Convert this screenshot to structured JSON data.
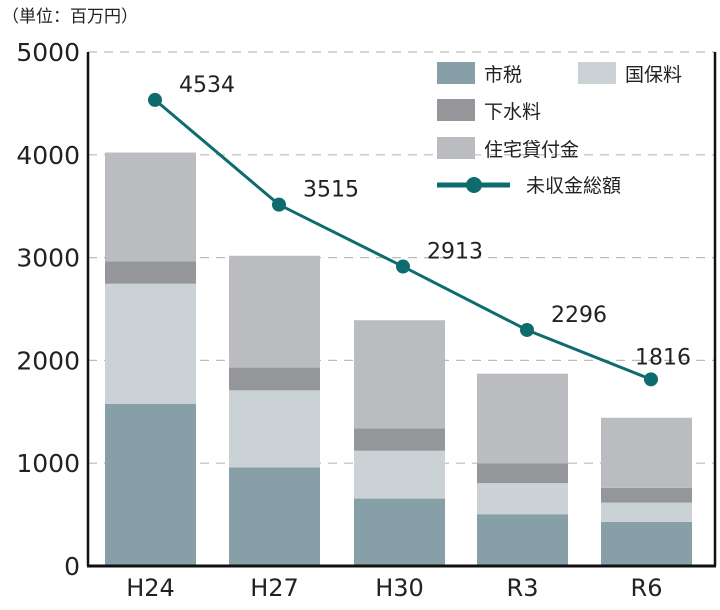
{
  "chart_data": {
    "type": "bar",
    "stacked": true,
    "unit_label": "（単位：百万円）",
    "categories": [
      "H24",
      "H27",
      "H30",
      "R3",
      "R6"
    ],
    "ylim": [
      0,
      5000
    ],
    "yticks": [
      0,
      1000,
      2000,
      3000,
      4000,
      5000
    ],
    "grid": true,
    "legend_placement": "top-right",
    "series": [
      {
        "name": "市税",
        "color": "#87a0a8",
        "values": [
          1576,
          958,
          656,
          504,
          429
        ]
      },
      {
        "name": "国保料",
        "color": "#cad2d5",
        "values": [
          1170,
          751,
          465,
          302,
          188
        ]
      },
      {
        "name": "下水料",
        "color": "#959699",
        "values": [
          217,
          221,
          217,
          191,
          143
        ]
      },
      {
        "name": "住宅貸付金",
        "color": "#bbbcc0",
        "values": [
          1059,
          1088,
          1053,
          874,
          682
        ]
      }
    ],
    "line_series": {
      "name": "未収金総額",
      "type": "line",
      "color": "#0e6b6e",
      "values": [
        4534,
        3515,
        2913,
        2296,
        1816
      ],
      "labels": [
        "4534",
        "3515",
        "2913",
        "2296",
        "1816"
      ]
    }
  }
}
